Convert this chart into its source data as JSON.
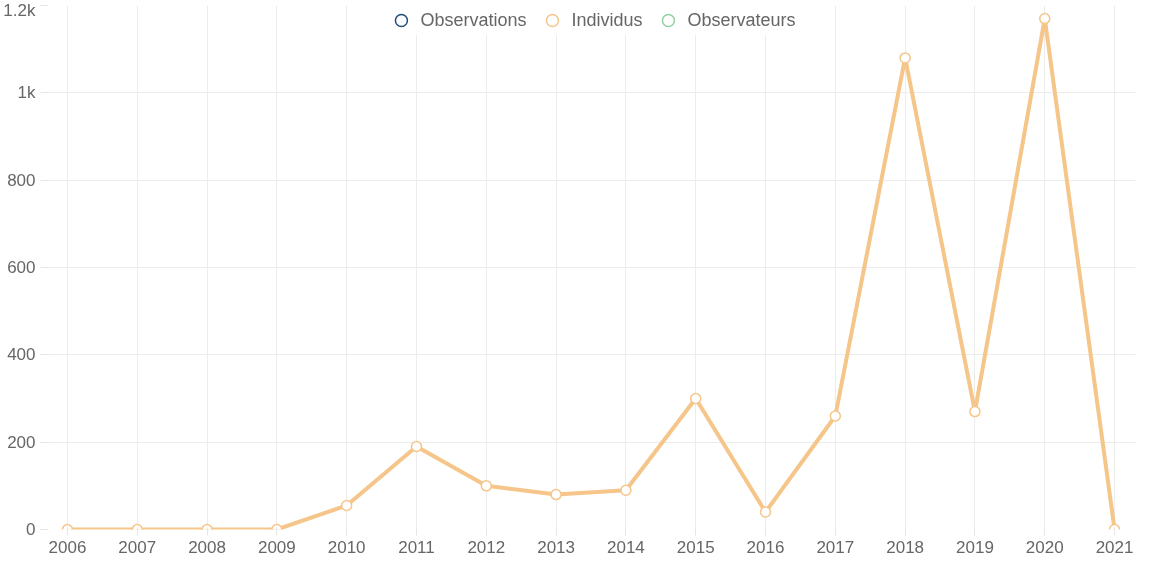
{
  "chart_data": {
    "type": "line",
    "categories": [
      "2006",
      "2007",
      "2008",
      "2009",
      "2010",
      "2011",
      "2012",
      "2013",
      "2014",
      "2015",
      "2016",
      "2017",
      "2018",
      "2019",
      "2020",
      "2021"
    ],
    "series": [
      {
        "name": "Observations",
        "color": "#1f4e79",
        "values": [
          null,
          null,
          null,
          null,
          null,
          null,
          null,
          null,
          null,
          null,
          null,
          null,
          null,
          null,
          null,
          null
        ]
      },
      {
        "name": "Individus",
        "color": "#f5c58a",
        "values": [
          0,
          0,
          0,
          0,
          55,
          190,
          100,
          80,
          90,
          300,
          40,
          260,
          1080,
          270,
          1170,
          0
        ]
      },
      {
        "name": "Observateurs",
        "color": "#8fd19e",
        "values": [
          null,
          null,
          null,
          null,
          null,
          null,
          null,
          null,
          null,
          null,
          null,
          null,
          null,
          null,
          null,
          null
        ]
      }
    ],
    "ylim": [
      0,
      1200
    ],
    "yticks": [
      0,
      200,
      400,
      600,
      800,
      {
        "value": 1000,
        "label": "1k"
      },
      {
        "value": 1200,
        "label": "1.2k"
      }
    ],
    "grid": true,
    "legend": "top",
    "marker": "circle",
    "line_style": "solid"
  }
}
